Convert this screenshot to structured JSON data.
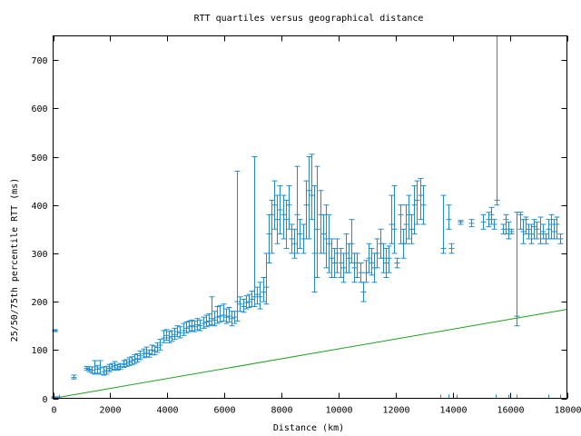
{
  "chart_data": {
    "type": "scatter",
    "title": "RTT quartiles versus geographical distance",
    "xlabel": "Distance (km)",
    "ylabel": "25/50/75th percentile RTT (ms)",
    "xlim": [
      0,
      18000
    ],
    "ylim": [
      0,
      750
    ],
    "xticks": [
      0,
      2000,
      4000,
      6000,
      8000,
      10000,
      12000,
      14000,
      16000,
      18000
    ],
    "yticks": [
      0,
      100,
      200,
      300,
      400,
      500,
      600,
      700
    ],
    "grid": false,
    "legend": "none",
    "colors": {
      "quartiles": "#1e8cd2",
      "reference": "#1ea01e",
      "axes": "#000000"
    },
    "series": [
      {
        "kind": "errorbar",
        "points": [
          [
            30,
            1,
            0,
            3
          ],
          [
            60,
            140,
            138,
            142
          ],
          [
            150,
            1,
            0,
            3
          ],
          [
            700,
            43,
            40,
            48
          ],
          [
            1150,
            62,
            58,
            66
          ],
          [
            1250,
            60,
            55,
            65
          ],
          [
            1350,
            58,
            52,
            65
          ],
          [
            1450,
            65,
            50,
            78
          ],
          [
            1550,
            60,
            52,
            68
          ],
          [
            1650,
            63,
            50,
            78
          ],
          [
            1750,
            55,
            48,
            65
          ],
          [
            1850,
            58,
            50,
            66
          ],
          [
            1950,
            62,
            55,
            70
          ],
          [
            2050,
            65,
            58,
            72
          ],
          [
            2150,
            68,
            60,
            76
          ],
          [
            2250,
            63,
            58,
            70
          ],
          [
            2350,
            66,
            60,
            72
          ],
          [
            2450,
            70,
            64,
            78
          ],
          [
            2550,
            72,
            66,
            80
          ],
          [
            2650,
            75,
            68,
            84
          ],
          [
            2750,
            78,
            70,
            86
          ],
          [
            2850,
            80,
            72,
            90
          ],
          [
            2950,
            82,
            75,
            92
          ],
          [
            3050,
            88,
            80,
            98
          ],
          [
            3150,
            92,
            84,
            102
          ],
          [
            3250,
            95,
            86,
            106
          ],
          [
            3350,
            92,
            85,
            100
          ],
          [
            3450,
            100,
            90,
            110
          ],
          [
            3550,
            98,
            90,
            108
          ],
          [
            3650,
            105,
            95,
            115
          ],
          [
            3750,
            110,
            100,
            122
          ],
          [
            3850,
            125,
            115,
            140
          ],
          [
            3950,
            130,
            120,
            142
          ],
          [
            4050,
            125,
            115,
            138
          ],
          [
            4150,
            128,
            118,
            140
          ],
          [
            4250,
            132,
            122,
            145
          ],
          [
            4350,
            138,
            128,
            150
          ],
          [
            4450,
            135,
            125,
            148
          ],
          [
            4550,
            140,
            130,
            155
          ],
          [
            4650,
            145,
            135,
            158
          ],
          [
            4750,
            148,
            138,
            160
          ],
          [
            4850,
            150,
            140,
            162
          ],
          [
            4950,
            148,
            138,
            160
          ],
          [
            5050,
            152,
            142,
            165
          ],
          [
            5150,
            150,
            140,
            162
          ],
          [
            5250,
            155,
            145,
            168
          ],
          [
            5350,
            158,
            148,
            172
          ],
          [
            5450,
            160,
            150,
            175
          ],
          [
            5550,
            165,
            152,
            210
          ],
          [
            5650,
            162,
            150,
            180
          ],
          [
            5750,
            168,
            155,
            190
          ],
          [
            5850,
            170,
            158,
            192
          ],
          [
            5950,
            172,
            160,
            195
          ],
          [
            6050,
            168,
            155,
            185
          ],
          [
            6150,
            170,
            158,
            188
          ],
          [
            6250,
            165,
            150,
            180
          ],
          [
            6350,
            168,
            155,
            180
          ],
          [
            6450,
            200,
            160,
            470
          ],
          [
            6550,
            195,
            180,
            210
          ],
          [
            6650,
            190,
            178,
            205
          ],
          [
            6750,
            198,
            185,
            212
          ],
          [
            6850,
            200,
            188,
            215
          ],
          [
            6950,
            205,
            190,
            222
          ],
          [
            7050,
            210,
            190,
            500
          ],
          [
            7150,
            215,
            195,
            230
          ],
          [
            7250,
            210,
            185,
            240
          ],
          [
            7350,
            220,
            200,
            250
          ],
          [
            7450,
            230,
            195,
            300
          ],
          [
            7550,
            340,
            280,
            380
          ],
          [
            7650,
            380,
            300,
            410
          ],
          [
            7750,
            400,
            350,
            450
          ],
          [
            7850,
            370,
            320,
            420
          ],
          [
            7950,
            390,
            340,
            440
          ],
          [
            8050,
            380,
            330,
            420
          ],
          [
            8150,
            370,
            310,
            410
          ],
          [
            8250,
            400,
            350,
            440
          ],
          [
            8350,
            330,
            300,
            360
          ],
          [
            8450,
            320,
            290,
            350
          ],
          [
            8550,
            380,
            300,
            480
          ],
          [
            8650,
            340,
            310,
            370
          ],
          [
            8750,
            330,
            300,
            360
          ],
          [
            8850,
            400,
            330,
            450
          ],
          [
            8950,
            430,
            330,
            500
          ],
          [
            9050,
            420,
            370,
            505
          ],
          [
            9150,
            300,
            220,
            440
          ],
          [
            9250,
            350,
            250,
            480
          ],
          [
            9350,
            380,
            300,
            430
          ],
          [
            9450,
            340,
            300,
            380
          ],
          [
            9550,
            330,
            270,
            400
          ],
          [
            9650,
            320,
            260,
            380
          ],
          [
            9750,
            290,
            250,
            330
          ],
          [
            9850,
            280,
            250,
            310
          ],
          [
            9950,
            300,
            260,
            330
          ],
          [
            10050,
            280,
            250,
            310
          ],
          [
            10150,
            270,
            240,
            300
          ],
          [
            10250,
            300,
            260,
            340
          ],
          [
            10350,
            290,
            260,
            320
          ],
          [
            10450,
            320,
            280,
            370
          ],
          [
            10550,
            270,
            240,
            300
          ],
          [
            10650,
            280,
            250,
            300
          ],
          [
            10750,
            260,
            240,
            280
          ],
          [
            10850,
            220,
            200,
            240
          ],
          [
            10950,
            260,
            240,
            285
          ],
          [
            11050,
            290,
            260,
            320
          ],
          [
            11150,
            280,
            255,
            310
          ],
          [
            11250,
            270,
            240,
            300
          ],
          [
            11350,
            300,
            270,
            330
          ],
          [
            11450,
            320,
            290,
            350
          ],
          [
            11550,
            290,
            260,
            320
          ],
          [
            11650,
            280,
            250,
            310
          ],
          [
            11750,
            290,
            260,
            315
          ],
          [
            11850,
            360,
            320,
            420
          ],
          [
            11950,
            350,
            300,
            440
          ],
          [
            12050,
            280,
            270,
            290
          ],
          [
            12150,
            380,
            320,
            400
          ],
          [
            12250,
            320,
            290,
            350
          ],
          [
            12350,
            360,
            320,
            400
          ],
          [
            12450,
            380,
            330,
            420
          ],
          [
            12550,
            350,
            320,
            380
          ],
          [
            12650,
            400,
            340,
            440
          ],
          [
            12750,
            410,
            360,
            450
          ],
          [
            12850,
            420,
            370,
            455
          ],
          [
            12950,
            400,
            360,
            440
          ],
          [
            13650,
            310,
            300,
            420
          ],
          [
            13850,
            370,
            350,
            400
          ],
          [
            13950,
            310,
            300,
            320
          ],
          [
            14250,
            365,
            360,
            368
          ],
          [
            14650,
            362,
            355,
            370
          ],
          [
            15050,
            365,
            350,
            380
          ],
          [
            15250,
            370,
            355,
            385
          ],
          [
            15350,
            380,
            360,
            395
          ],
          [
            15450,
            360,
            350,
            370
          ],
          [
            15550,
            410,
            400,
            750
          ],
          [
            15750,
            350,
            340,
            360
          ],
          [
            15850,
            370,
            340,
            380
          ],
          [
            15950,
            350,
            330,
            365
          ],
          [
            16050,
            345,
            340,
            350
          ],
          [
            16250,
            170,
            150,
            385
          ],
          [
            16350,
            380,
            350,
            385
          ],
          [
            16450,
            345,
            320,
            370
          ],
          [
            16550,
            370,
            340,
            375
          ],
          [
            16650,
            350,
            330,
            360
          ],
          [
            16750,
            340,
            320,
            360
          ],
          [
            16850,
            355,
            330,
            370
          ],
          [
            16950,
            350,
            330,
            365
          ],
          [
            17050,
            340,
            320,
            375
          ],
          [
            17150,
            345,
            330,
            360
          ],
          [
            17250,
            330,
            320,
            340
          ],
          [
            17350,
            350,
            330,
            370
          ],
          [
            17450,
            360,
            330,
            380
          ],
          [
            17550,
            345,
            330,
            370
          ],
          [
            17650,
            360,
            330,
            375
          ],
          [
            17750,
            330,
            320,
            340
          ]
        ]
      },
      {
        "kind": "line",
        "points": [
          [
            0,
            0
          ],
          [
            18000,
            184
          ]
        ]
      }
    ],
    "x_edge_marks": [
      200,
      13550,
      13850,
      14150,
      15500,
      15950,
      16250,
      17350,
      17750
    ]
  }
}
